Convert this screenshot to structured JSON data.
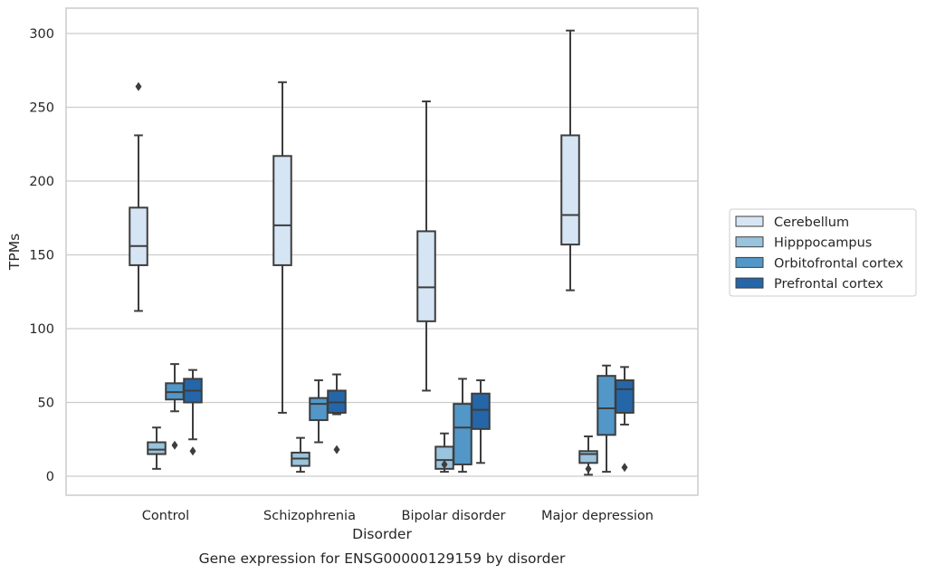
{
  "chart_data": {
    "type": "box",
    "title": "",
    "caption": "Gene expression for ENSG00000129159 by disorder",
    "xlabel": "Disorder",
    "ylabel": "TPMs",
    "ylim": [
      -13,
      317
    ],
    "yticks": [
      0,
      50,
      100,
      150,
      200,
      250,
      300
    ],
    "grid": true,
    "legend_position": "right",
    "categories": [
      "Control",
      "Schizophrenia",
      "Bipolar disorder",
      "Major depression"
    ],
    "series": [
      {
        "name": "Cerebellum",
        "color": "#d6e5f4",
        "boxes": [
          {
            "whislo": 112,
            "q1": 143,
            "med": 156,
            "q3": 182,
            "whishi": 231,
            "fliers": [
              264
            ]
          },
          {
            "whislo": 43,
            "q1": 143,
            "med": 170,
            "q3": 217,
            "whishi": 267,
            "fliers": []
          },
          {
            "whislo": 58,
            "q1": 105,
            "med": 128,
            "q3": 166,
            "whishi": 254,
            "fliers": []
          },
          {
            "whislo": 126,
            "q1": 157,
            "med": 177,
            "q3": 231,
            "whishi": 302,
            "fliers": []
          }
        ]
      },
      {
        "name": "Hipppocampus",
        "color": "#9ac3dd",
        "boxes": [
          {
            "whislo": 5,
            "q1": 15,
            "med": 18,
            "q3": 23,
            "whishi": 33,
            "fliers": []
          },
          {
            "whislo": 3,
            "q1": 7,
            "med": 12,
            "q3": 16,
            "whishi": 26,
            "fliers": []
          },
          {
            "whislo": 3,
            "q1": 5,
            "med": 11,
            "q3": 20,
            "whishi": 29,
            "fliers": [
              8
            ]
          },
          {
            "whislo": 1,
            "q1": 9,
            "med": 15,
            "q3": 17,
            "whishi": 27,
            "fliers": [
              5
            ]
          }
        ]
      },
      {
        "name": "Orbitofrontal cortex",
        "color": "#5297c7",
        "boxes": [
          {
            "whislo": 44,
            "q1": 52,
            "med": 57,
            "q3": 63,
            "whishi": 76,
            "fliers": [
              21
            ]
          },
          {
            "whislo": 23,
            "q1": 38,
            "med": 49,
            "q3": 53,
            "whishi": 65,
            "fliers": []
          },
          {
            "whislo": 3,
            "q1": 8,
            "med": 33,
            "q3": 49,
            "whishi": 66,
            "fliers": []
          },
          {
            "whislo": 3,
            "q1": 28,
            "med": 46,
            "q3": 68,
            "whishi": 75,
            "fliers": []
          }
        ]
      },
      {
        "name": "Prefrontal cortex",
        "color": "#2566a8",
        "boxes": [
          {
            "whislo": 25,
            "q1": 50,
            "med": 58,
            "q3": 66,
            "whishi": 72,
            "fliers": [
              17
            ]
          },
          {
            "whislo": 42,
            "q1": 43,
            "med": 50,
            "q3": 58,
            "whishi": 69,
            "fliers": [
              18
            ]
          },
          {
            "whislo": 9,
            "q1": 32,
            "med": 45,
            "q3": 56,
            "whishi": 65,
            "fliers": []
          },
          {
            "whislo": 35,
            "q1": 43,
            "med": 59,
            "q3": 65,
            "whishi": 74,
            "fliers": [
              6
            ]
          }
        ]
      }
    ]
  }
}
